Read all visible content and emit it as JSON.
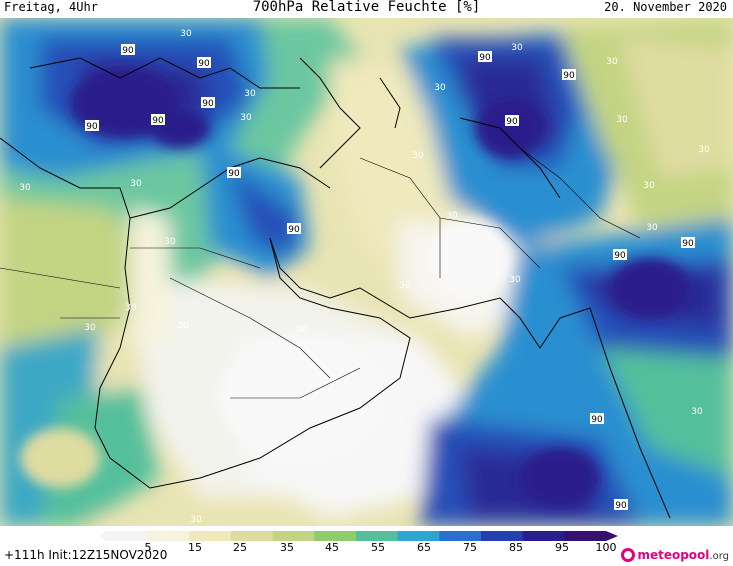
{
  "header": {
    "left": "Freitag, 4Uhr",
    "title": "700hPa Relative Feuchte [%]",
    "right": "20. November 2020"
  },
  "footer": {
    "run_info": "+111h Init:12Z15NOV2020",
    "logo_main": "meteopool",
    "logo_tld": ".org"
  },
  "colorbar": {
    "ticks": [
      "5",
      "15",
      "25",
      "35",
      "45",
      "55",
      "65",
      "75",
      "85",
      "95",
      "100"
    ],
    "colors": [
      "#f4f4f4",
      "#f6f3dc",
      "#efe9bd",
      "#dfdca0",
      "#c3d483",
      "#8fcc6c",
      "#55bf9c",
      "#2ea6cf",
      "#2a6fd0",
      "#243fb0",
      "#2a1e8a",
      "#35106e"
    ]
  },
  "contour_labels": {
    "ninety": "90",
    "thirty": "30"
  },
  "fields": {
    "background": "#efe9bd"
  }
}
